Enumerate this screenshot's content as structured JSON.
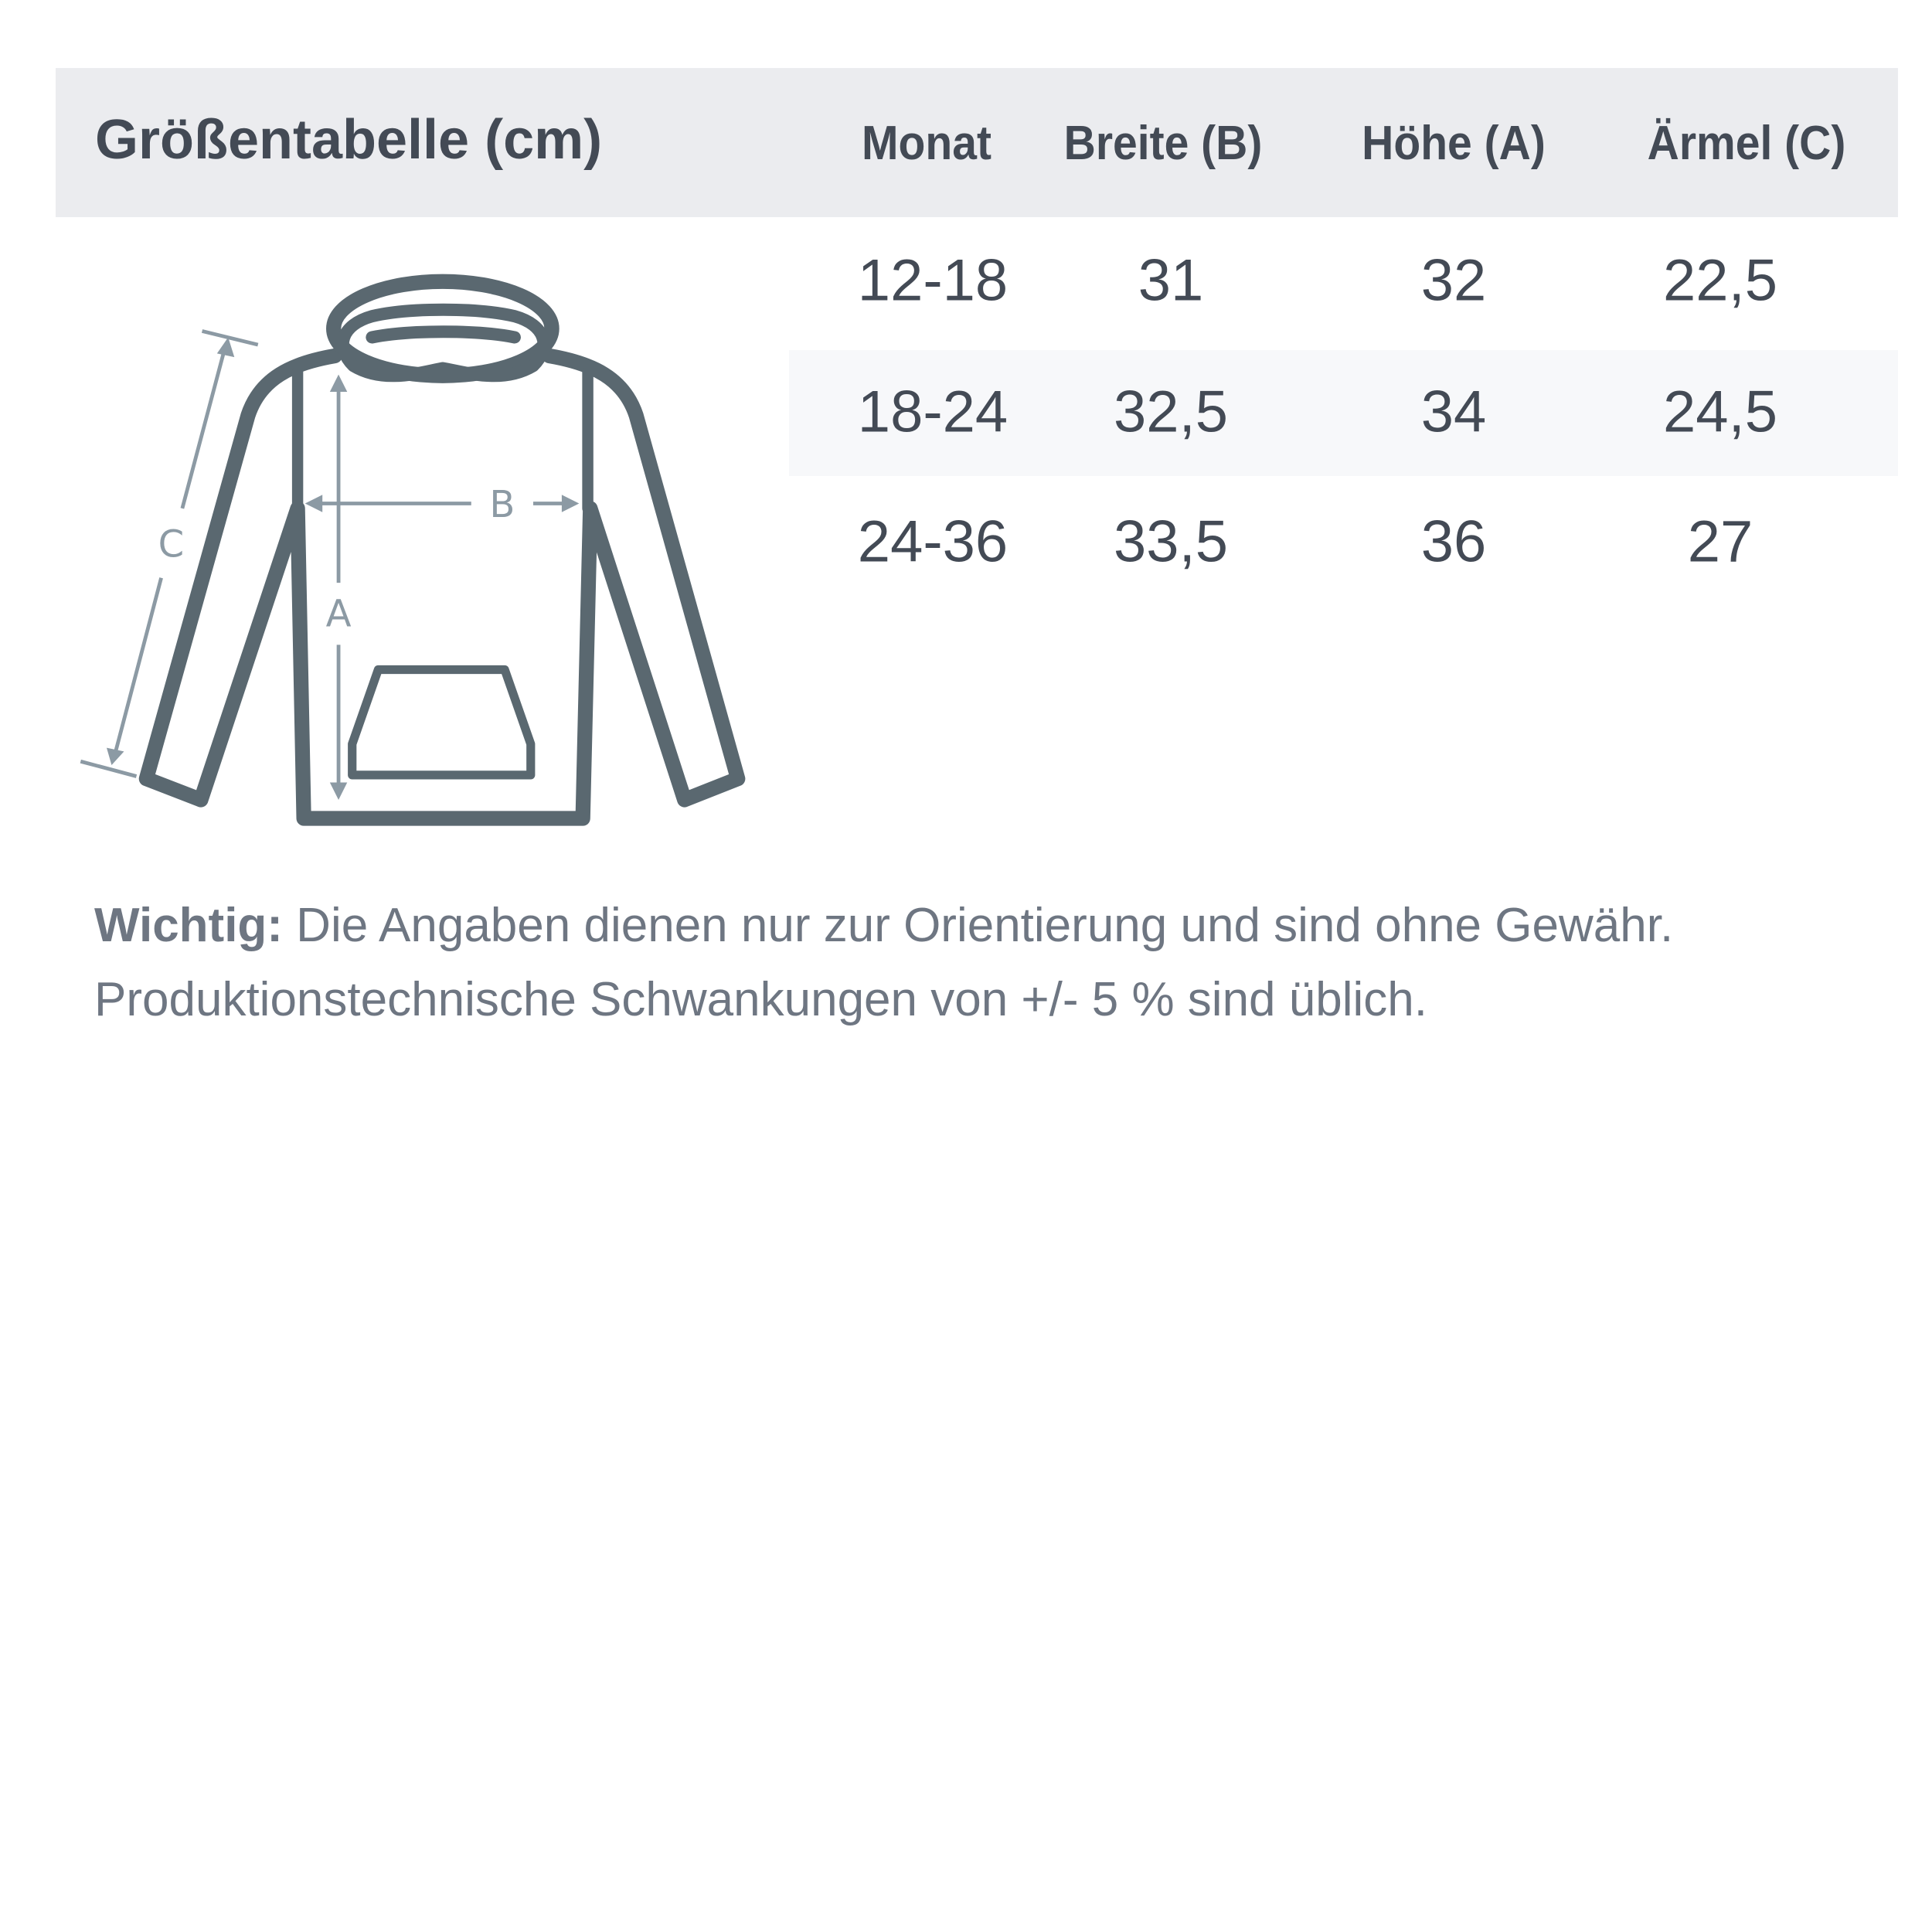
{
  "title": "Größentabelle (cm)",
  "columns": [
    "Monat",
    "Breite (B)",
    "Höhe (A)",
    "Ärmel (C)"
  ],
  "rows": [
    [
      "12-18",
      "31",
      "32",
      "22,5"
    ],
    [
      "18-24",
      "32,5",
      "34",
      "24,5"
    ],
    [
      "24-36",
      "33,5",
      "36",
      "27"
    ]
  ],
  "diagram": {
    "label_a": "A",
    "label_b": "B",
    "label_c": "C",
    "icon": "hoodie-measurement-diagram"
  },
  "note": {
    "bold": "Wichtig:",
    "line1": " Die Angaben dienen nur zur Orientierung und sind ohne Gewähr.",
    "line2": "Produktionstechnische Schwankungen von +/- 5 % sind üblich."
  },
  "colors": {
    "header_bg": "#ebecef",
    "text": "#434a55",
    "outline": "#5a6870",
    "arrow": "#8c9aa4"
  }
}
